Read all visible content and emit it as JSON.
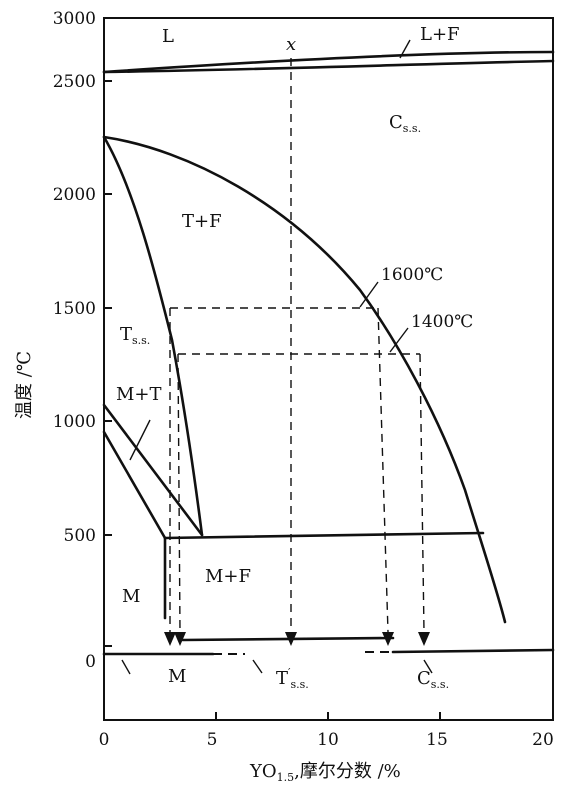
{
  "axes": {
    "x_label_main": "YO",
    "x_label_sub": "1.5",
    "x_label_rest": ",摩尔分数 /%",
    "y_label": "温度 /℃",
    "x_ticks": [
      "0",
      "5",
      "10",
      "15",
      "20"
    ],
    "y_ticks": [
      "3000",
      "2500",
      "2000",
      "1500",
      "1000",
      "500",
      "0"
    ],
    "x_range": [
      0,
      20
    ],
    "y_range": [
      -300,
      3000
    ]
  },
  "regions": {
    "L": "L",
    "LF": "L+F",
    "x": "x",
    "Css_main": "C",
    "Css_sub": "s.s.",
    "TF": "T+F",
    "Tss_main": "T",
    "Tss_sub": "s.s.",
    "MT": "M+T",
    "MF": "M+F",
    "M_upper": "M",
    "M_lower": "M",
    "Tpss_main": "T",
    "Tpss_prime": "′",
    "Tpss_sub": "s.s.",
    "Css2_main": "C",
    "Css2_sub": "s.s."
  },
  "isotherms": {
    "t1600": "1600℃",
    "t1400": "1400℃"
  }
}
